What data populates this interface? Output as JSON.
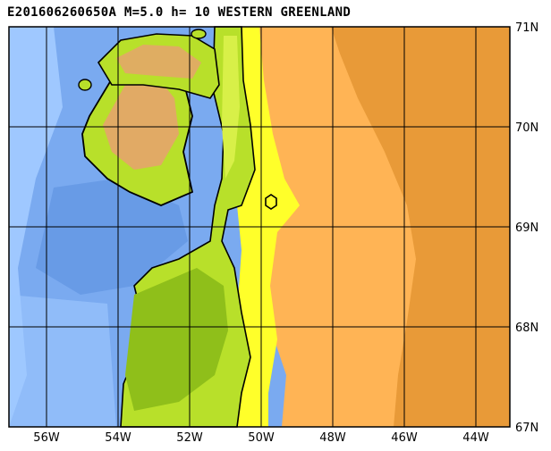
{
  "title": "E201606260650A M=5.0 h= 10 WESTERN GREENLAND",
  "map": {
    "lon_labels": [
      "56W",
      "54W",
      "52W",
      "50W",
      "48W",
      "46W",
      "44W"
    ],
    "lat_labels": [
      "71N",
      "70N",
      "69N",
      "68N",
      "67N"
    ],
    "lon_range": [
      -57,
      -43
    ],
    "lat_range": [
      67,
      71
    ],
    "colors": {
      "deep_ocean": "#5a8ede",
      "ocean": "#7aaaf0",
      "shelf": "#9fc8ff",
      "lowland_dark": "#8fbf1a",
      "lowland": "#b8e02a",
      "upland": "#d8f048",
      "coast_yellow": "#ffff2a",
      "highland_salmon": "#e8a070",
      "ice_orange": "#ffb455",
      "ice_dark": "#e89a38"
    }
  }
}
